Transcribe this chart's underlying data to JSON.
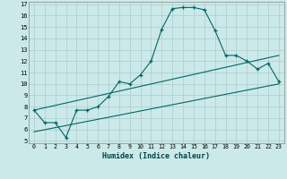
{
  "xlabel": "Humidex (Indice chaleur)",
  "background_color": "#cce9e9",
  "grid_color": "#aacccc",
  "line_color": "#006666",
  "xlim": [
    -0.5,
    23.5
  ],
  "ylim": [
    4.8,
    17.2
  ],
  "yticks": [
    5,
    6,
    7,
    8,
    9,
    10,
    11,
    12,
    13,
    14,
    15,
    16,
    17
  ],
  "xticks": [
    0,
    1,
    2,
    3,
    4,
    5,
    6,
    7,
    8,
    9,
    10,
    11,
    12,
    13,
    14,
    15,
    16,
    17,
    18,
    19,
    20,
    21,
    22,
    23
  ],
  "xtick_labels": [
    "0",
    "1",
    "2",
    "3",
    "4",
    "5",
    "6",
    "7",
    "8",
    "9",
    "10",
    "11",
    "12",
    "13",
    "14",
    "15",
    "16",
    "17",
    "18",
    "19",
    "20",
    "21",
    "22",
    "23"
  ],
  "line1_x": [
    0,
    1,
    2,
    3,
    4,
    5,
    6,
    7,
    8,
    9,
    10,
    11,
    12,
    13,
    14,
    15,
    16,
    17,
    18,
    19,
    20,
    21,
    22,
    23
  ],
  "line1_y": [
    7.7,
    6.6,
    6.6,
    5.3,
    7.7,
    7.7,
    8.0,
    8.9,
    10.2,
    10.0,
    10.8,
    12.0,
    14.8,
    16.6,
    16.7,
    16.7,
    16.5,
    14.7,
    12.5,
    12.5,
    12.0,
    11.3,
    11.8,
    10.2
  ],
  "line2_x": [
    0,
    23
  ],
  "line2_y": [
    7.7,
    12.5
  ],
  "line3_x": [
    0,
    23
  ],
  "line3_y": [
    5.8,
    10.0
  ]
}
